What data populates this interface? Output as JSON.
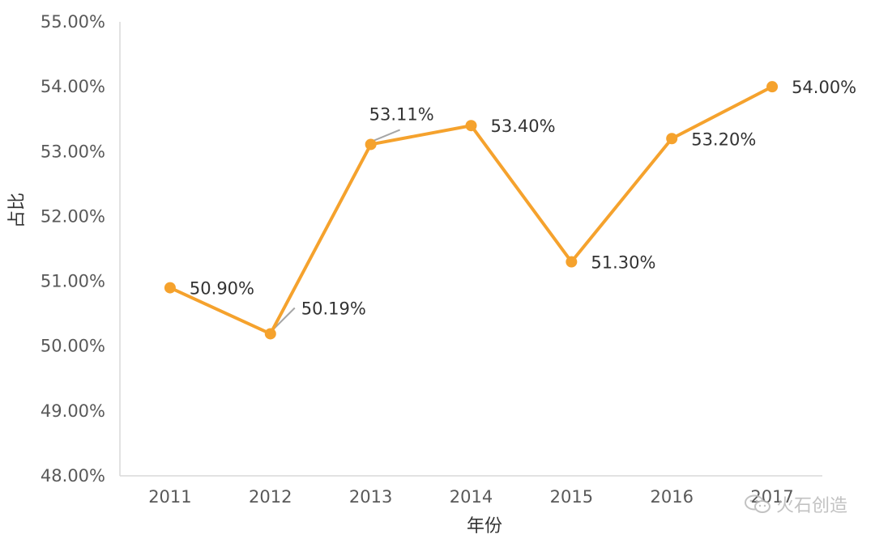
{
  "chart_data": {
    "type": "line",
    "xlabel": "年份",
    "ylabel": "占比",
    "categories": [
      "2011",
      "2012",
      "2013",
      "2014",
      "2015",
      "2016",
      "2017"
    ],
    "series": [
      {
        "values": [
          50.9,
          50.19,
          53.11,
          53.4,
          51.3,
          53.2,
          54.0
        ],
        "labels": [
          "50.90%",
          "50.19%",
          "53.11%",
          "53.40%",
          "51.30%",
          "53.20%",
          "54.00%"
        ],
        "color": "#F5A22D"
      }
    ],
    "ylim": [
      48,
      55
    ],
    "yticks": [
      48,
      49,
      50,
      51,
      52,
      53,
      54,
      55
    ],
    "ytick_labels": [
      "48.00%",
      "49.00%",
      "50.00%",
      "51.00%",
      "52.00%",
      "53.00%",
      "54.00%",
      "55.00%"
    ],
    "grid": false,
    "legend": "none"
  },
  "watermark": {
    "icon": "wechat-icon",
    "text": "火石创造"
  }
}
